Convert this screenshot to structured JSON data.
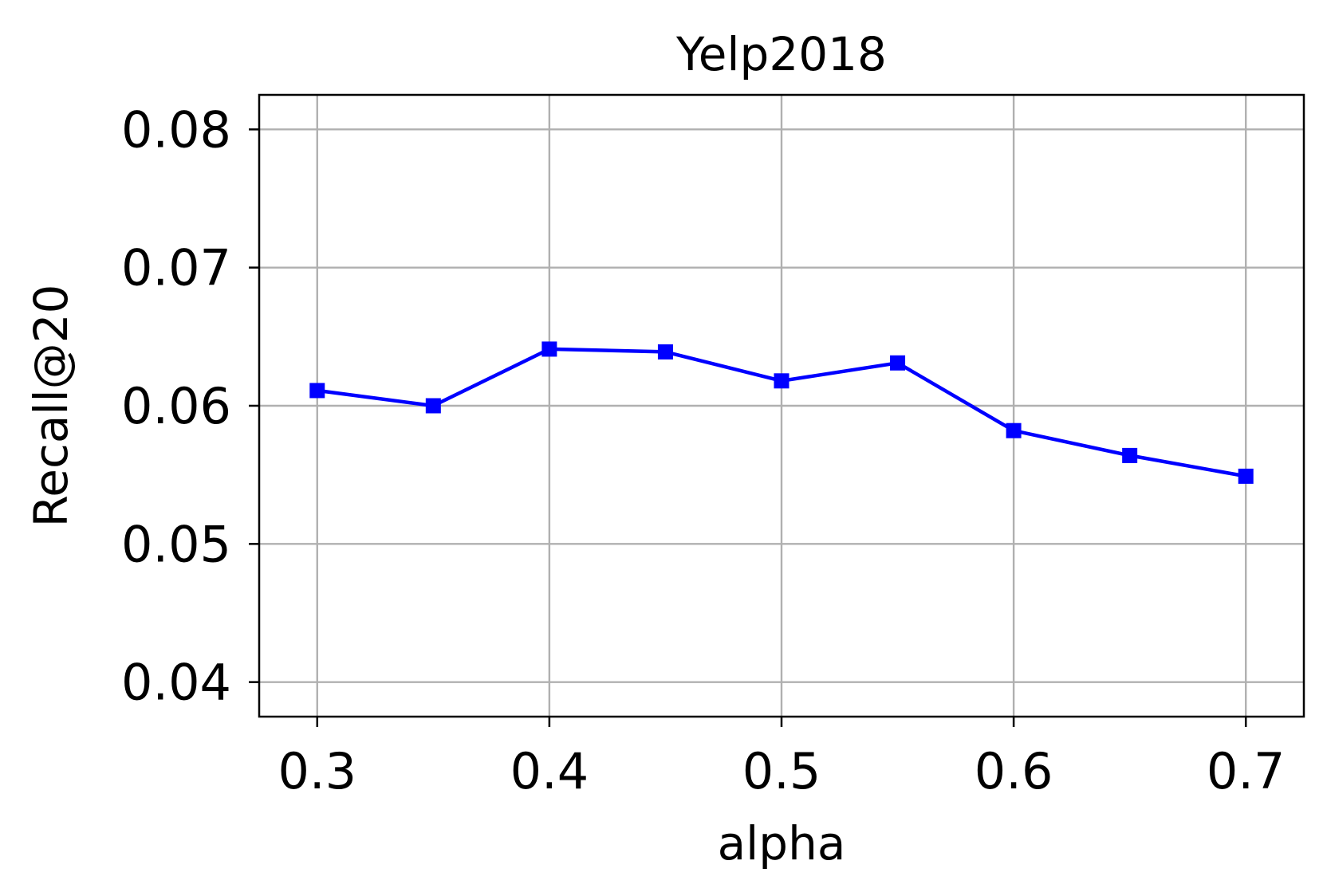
{
  "chart_data": {
    "type": "line",
    "title": "Yelp2018",
    "xlabel": "alpha",
    "ylabel": "Recall@20",
    "xlim": [
      0.275,
      0.725
    ],
    "ylim": [
      0.0375,
      0.0825
    ],
    "xticks": [
      0.3,
      0.4,
      0.5,
      0.6,
      0.7
    ],
    "xtick_labels": [
      "0.3",
      "0.4",
      "0.5",
      "0.6",
      "0.7"
    ],
    "yticks": [
      0.04,
      0.05,
      0.06,
      0.07,
      0.08
    ],
    "ytick_labels": [
      "0.04",
      "0.05",
      "0.06",
      "0.07",
      "0.08"
    ],
    "grid": true,
    "series": [
      {
        "color": "#0000ff",
        "marker": "square",
        "x": [
          0.3,
          0.35,
          0.4,
          0.45,
          0.5,
          0.55,
          0.6,
          0.65,
          0.7
        ],
        "y": [
          0.0611,
          0.06,
          0.0641,
          0.0639,
          0.0618,
          0.0631,
          0.0582,
          0.0564,
          0.0549
        ]
      }
    ]
  }
}
